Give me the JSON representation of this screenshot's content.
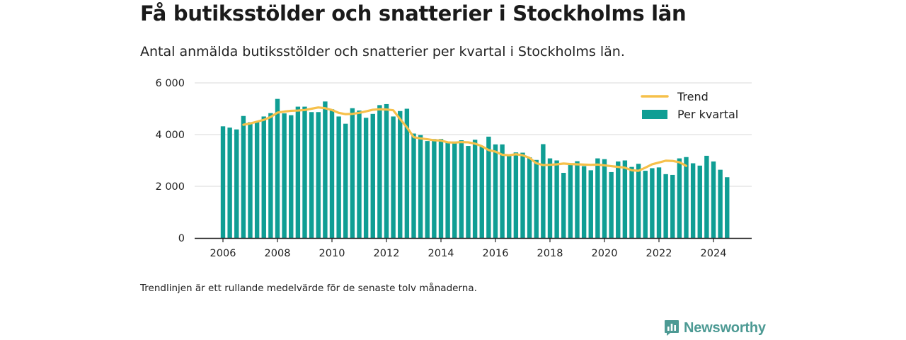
{
  "title": "Få butiksstölder och snatterier i Stockholms län",
  "subtitle": "Antal anmälda butiksstölder och snatterier per kvartal i Stockholms län.",
  "note": "Trendlinjen är ett rullande medelvärde för de senaste tolv månaderna.",
  "brand": "Newsworthy",
  "colors": {
    "bars": "#0f9e94",
    "trend": "#f6c04a",
    "grid": "#d9d9d9",
    "axis": "#222222",
    "brand": "#4d9a94"
  },
  "legend": {
    "position": "top-right",
    "items": [
      {
        "label": "Trend",
        "kind": "line"
      },
      {
        "label": "Per kvartal",
        "kind": "bar"
      }
    ]
  },
  "chart_data": {
    "type": "bar",
    "x_start": "2006-Q1",
    "x_ticks": [
      "2006",
      "2008",
      "2010",
      "2012",
      "2014",
      "2016",
      "2018",
      "2020",
      "2022",
      "2024"
    ],
    "y_ticks": [
      "0",
      "2 000",
      "4 000",
      "6 000"
    ],
    "ylim": [
      0,
      6000
    ],
    "grid": true,
    "series": [
      {
        "name": "Per kvartal",
        "type": "bar",
        "values": [
          4320,
          4270,
          4200,
          4720,
          4480,
          4520,
          4700,
          4830,
          5380,
          4820,
          4750,
          5080,
          5080,
          4870,
          4870,
          5280,
          4980,
          4700,
          4420,
          5020,
          4930,
          4650,
          4800,
          5140,
          5180,
          4700,
          4910,
          5000,
          4040,
          3980,
          3750,
          3830,
          3830,
          3720,
          3730,
          3780,
          3560,
          3800,
          3560,
          3920,
          3620,
          3620,
          3200,
          3310,
          3300,
          3120,
          3020,
          3630,
          3080,
          3000,
          2520,
          2860,
          2970,
          2780,
          2620,
          3080,
          3050,
          2550,
          2960,
          3000,
          2750,
          2870,
          2600,
          2700,
          2730,
          2470,
          2440,
          3080,
          3130,
          2890,
          2800,
          3180,
          2960,
          2640,
          2350
        ]
      },
      {
        "name": "Trend",
        "type": "line",
        "start_index": 3,
        "values": [
          4380,
          4430,
          4500,
          4570,
          4680,
          4850,
          4890,
          4920,
          4930,
          4950,
          5000,
          5050,
          5020,
          4950,
          4840,
          4790,
          4800,
          4840,
          4900,
          4960,
          4980,
          4970,
          4940,
          4600,
          4280,
          3900,
          3850,
          3820,
          3780,
          3770,
          3700,
          3690,
          3710,
          3700,
          3650,
          3550,
          3400,
          3340,
          3220,
          3200,
          3240,
          3200,
          3100,
          2890,
          2820,
          2830,
          2850,
          2880,
          2860,
          2850,
          2840,
          2830,
          2840,
          2810,
          2780,
          2750,
          2720,
          2620,
          2600,
          2720,
          2850,
          2920,
          2990,
          2980,
          2930,
          2790
        ]
      }
    ]
  }
}
